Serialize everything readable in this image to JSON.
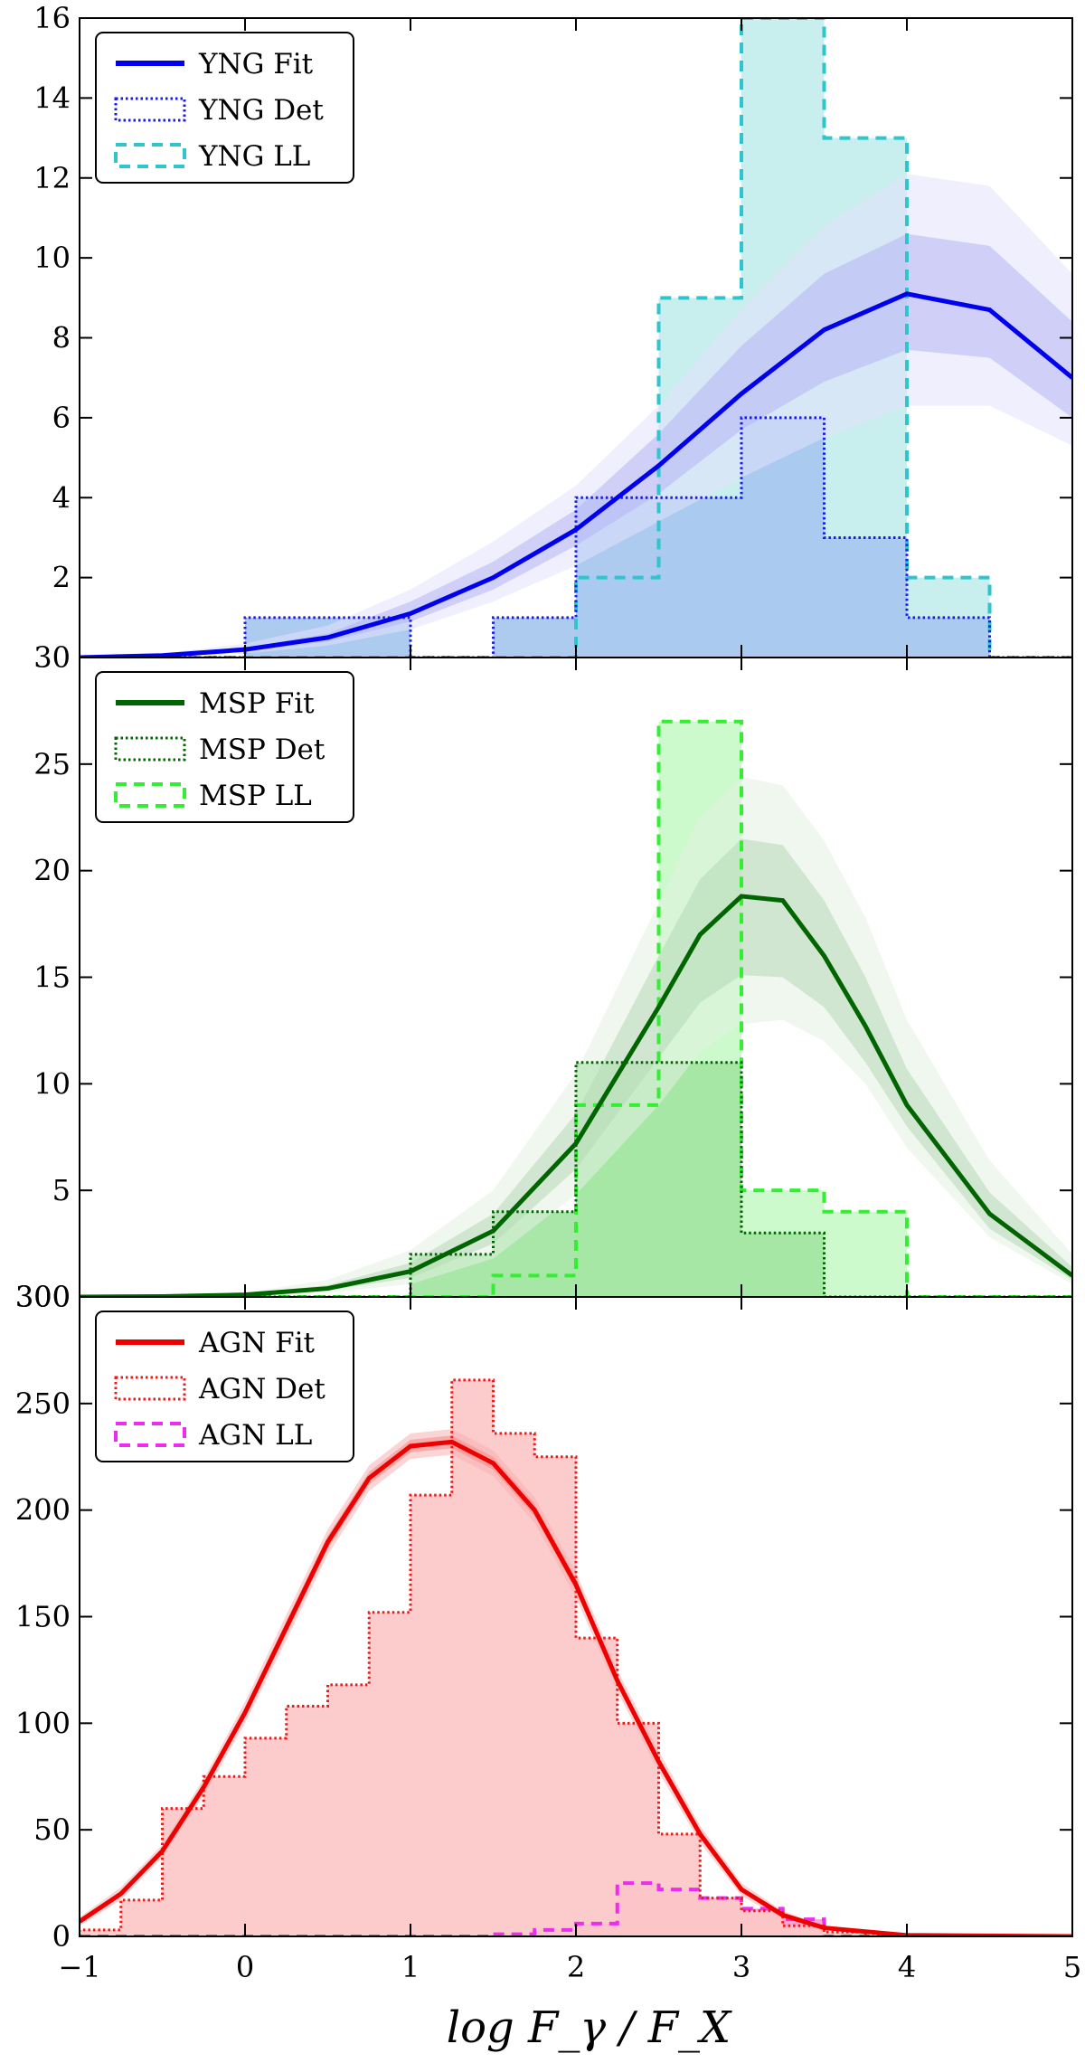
{
  "figure": {
    "xlabel": "log F_γ / F_X",
    "xlim": [
      -1,
      5
    ],
    "xticks": [
      -1,
      0,
      1,
      2,
      3,
      4,
      5
    ]
  },
  "chart_data": [
    {
      "type": "line",
      "panel": "YNG",
      "ylim": [
        0,
        16
      ],
      "yticks": [
        0,
        2,
        4,
        6,
        8,
        10,
        12,
        14,
        16
      ],
      "ytick_labels": [
        "30",
        "2",
        "4",
        "6",
        "8",
        "10",
        "12",
        "14",
        "16"
      ],
      "colors": {
        "fit": "#0000ee",
        "det": "#1a1aee",
        "ll": "#2ec6cc",
        "fill_det": "#a9c7ee",
        "fill_ll": "#c9eeee",
        "band_outer": "#e2e2fb",
        "band_inner": "#b4b4f4",
        "band_inner_ll": "#9bbcef",
        "band_outer_ll": "#b9dcef"
      },
      "legend": [
        {
          "label": "YNG Fit",
          "style": "solid"
        },
        {
          "label": "YNG Det",
          "style": "dotted"
        },
        {
          "label": "YNG LL",
          "style": "dashed"
        }
      ],
      "hist_edges": [
        -1.0,
        -0.5,
        0.0,
        0.5,
        1.0,
        1.5,
        2.0,
        2.5,
        3.0,
        3.5,
        4.0,
        4.5,
        5.0
      ],
      "det_counts": [
        0,
        0,
        1,
        1,
        0,
        1,
        4,
        4,
        6,
        3,
        1,
        0
      ],
      "ll_counts": [
        0,
        0,
        0,
        0,
        0,
        0,
        2,
        9,
        16,
        13,
        2,
        0
      ],
      "fit": {
        "x": [
          -1.0,
          -0.5,
          0.0,
          0.5,
          1.0,
          1.5,
          2.0,
          2.5,
          3.0,
          3.5,
          4.0,
          4.5,
          5.0
        ],
        "y": [
          0.0,
          0.05,
          0.2,
          0.5,
          1.1,
          2.0,
          3.2,
          4.8,
          6.6,
          8.2,
          9.1,
          8.7,
          7.0
        ],
        "band_inner": {
          "lower": [
            0.0,
            0.04,
            0.15,
            0.4,
            0.9,
            1.7,
            2.8,
            4.1,
            5.7,
            6.9,
            7.7,
            7.5,
            6.0
          ],
          "upper": [
            0.0,
            0.06,
            0.25,
            0.6,
            1.4,
            2.4,
            3.7,
            5.6,
            7.8,
            9.6,
            10.6,
            10.3,
            8.4
          ]
        },
        "band_outer": {
          "lower": [
            0.0,
            0.02,
            0.1,
            0.3,
            0.7,
            1.4,
            2.3,
            3.4,
            4.5,
            5.5,
            6.3,
            6.3,
            5.3
          ],
          "upper": [
            0.0,
            0.1,
            0.35,
            0.8,
            1.7,
            2.9,
            4.3,
            6.3,
            8.7,
            10.8,
            12.1,
            11.8,
            9.6
          ]
        }
      }
    },
    {
      "type": "line",
      "panel": "MSP",
      "ylim": [
        0,
        30
      ],
      "yticks": [
        0,
        5,
        10,
        15,
        20,
        25
      ],
      "ytick_labels": [
        "300",
        "5",
        "10",
        "15",
        "20",
        "25"
      ],
      "colors": {
        "fit": "#006400",
        "det": "#006400",
        "ll": "#33ee33",
        "fill_det": "#a3e6a3",
        "fill_ll": "#ccfacc",
        "band_outer": "#e2f0e2",
        "band_inner": "#b7d9b7"
      },
      "legend": [
        {
          "label": "MSP Fit",
          "style": "solid"
        },
        {
          "label": "MSP Det",
          "style": "dotted"
        },
        {
          "label": "MSP LL",
          "style": "dashed"
        }
      ],
      "hist_edges": [
        -1.0,
        -0.5,
        0.0,
        0.5,
        1.0,
        1.5,
        2.0,
        2.5,
        3.0,
        3.5,
        4.0,
        4.5,
        5.0
      ],
      "det_counts": [
        0,
        0,
        0,
        0,
        2,
        4,
        11,
        11,
        3,
        0,
        0,
        0
      ],
      "ll_counts": [
        0,
        0,
        0,
        0,
        0,
        1,
        9,
        27,
        5,
        4,
        0,
        0
      ],
      "fit": {
        "x": [
          -1.0,
          -0.5,
          0.0,
          0.5,
          1.0,
          1.5,
          2.0,
          2.5,
          2.75,
          3.0,
          3.25,
          3.5,
          3.75,
          4.0,
          4.5,
          5.0
        ],
        "y": [
          0.0,
          0.02,
          0.1,
          0.4,
          1.2,
          3.1,
          7.2,
          13.6,
          17.0,
          18.8,
          18.6,
          16.0,
          12.7,
          9.0,
          3.9,
          1.0
        ],
        "band_inner": {
          "lower": [
            0.0,
            0.01,
            0.06,
            0.3,
            0.9,
            2.5,
            6.0,
            11.2,
            13.8,
            15.1,
            15.0,
            13.6,
            11.0,
            8.0,
            3.2,
            0.8
          ],
          "upper": [
            0.0,
            0.03,
            0.15,
            0.55,
            1.6,
            3.9,
            8.6,
            16.0,
            19.6,
            21.5,
            21.2,
            18.6,
            15.0,
            10.7,
            4.9,
            1.4
          ]
        },
        "band_outer": {
          "lower": [
            0.0,
            0.0,
            0.03,
            0.2,
            0.6,
            1.8,
            4.8,
            9.0,
            11.5,
            12.8,
            13.0,
            12.0,
            10.0,
            7.0,
            2.8,
            0.6
          ],
          "upper": [
            0.0,
            0.05,
            0.2,
            0.8,
            2.2,
            5.0,
            10.5,
            18.5,
            22.5,
            24.4,
            24.0,
            21.4,
            17.8,
            13.0,
            6.4,
            2.0
          ]
        }
      }
    },
    {
      "type": "line",
      "panel": "AGN",
      "ylim": [
        0,
        300
      ],
      "yticks": [
        0,
        50,
        100,
        150,
        200,
        250,
        300
      ],
      "ytick_labels": [
        "0",
        "50",
        "100",
        "150",
        "200",
        "250",
        "300"
      ],
      "colors": {
        "fit": "#ee0000",
        "det": "#ee1a1a",
        "ll": "#ee2bee",
        "fill_det": "#fcc8c8",
        "fill_ll": "#f8a4d6",
        "band_outer": "#f7b2b2",
        "band_inner": "#f48a8a"
      },
      "legend": [
        {
          "label": "AGN Fit",
          "style": "solid"
        },
        {
          "label": "AGN Det",
          "style": "dotted"
        },
        {
          "label": "AGN LL",
          "style": "dashed"
        }
      ],
      "hist_edges": [
        -1.0,
        -0.75,
        -0.5,
        -0.25,
        0.0,
        0.25,
        0.5,
        0.75,
        1.0,
        1.25,
        1.5,
        1.75,
        2.0,
        2.25,
        2.5,
        2.75,
        3.0,
        3.25,
        3.5,
        3.75,
        4.0
      ],
      "det_counts": [
        3,
        17,
        60,
        75,
        93,
        108,
        118,
        152,
        207,
        261,
        236,
        225,
        140,
        100,
        48,
        18,
        12,
        5,
        2,
        0
      ],
      "ll_counts": [
        0,
        0,
        0,
        0,
        0,
        0,
        0,
        0,
        0,
        0,
        1,
        3,
        6,
        25,
        22,
        18,
        13,
        8,
        0,
        0
      ],
      "fit": {
        "x": [
          -1.0,
          -0.75,
          -0.5,
          -0.25,
          0.0,
          0.25,
          0.5,
          0.75,
          1.0,
          1.25,
          1.5,
          1.75,
          2.0,
          2.25,
          2.5,
          2.75,
          3.0,
          3.25,
          3.5,
          4.0,
          5.0
        ],
        "y": [
          7,
          20,
          40,
          70,
          105,
          145,
          185,
          215,
          230,
          232,
          222,
          200,
          165,
          120,
          82,
          48,
          22,
          10,
          4,
          0.5,
          0
        ],
        "band_inner": {
          "lower": [
            6,
            19,
            39,
            68,
            103,
            142,
            182,
            212,
            227,
            229,
            219,
            197,
            162,
            118,
            80,
            46,
            21,
            9,
            3.5,
            0.4,
            0
          ],
          "upper": [
            8,
            21,
            41,
            72,
            107,
            148,
            188,
            218,
            233,
            235,
            225,
            203,
            168,
            122,
            84,
            50,
            23,
            11,
            4.5,
            0.6,
            0
          ]
        },
        "band_outer": {
          "lower": [
            5,
            17,
            37,
            66,
            100,
            139,
            179,
            209,
            224,
            226,
            216,
            194,
            159,
            115,
            77,
            44,
            19,
            8,
            3,
            0.3,
            0
          ],
          "upper": [
            9,
            23,
            43,
            74,
            110,
            151,
            191,
            221,
            236,
            238,
            228,
            206,
            171,
            125,
            87,
            52,
            25,
            12,
            5,
            0.7,
            0
          ]
        }
      }
    }
  ]
}
